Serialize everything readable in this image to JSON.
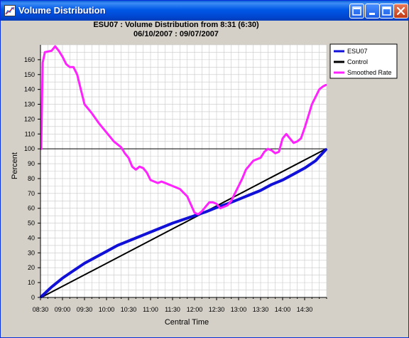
{
  "window": {
    "title": "Volume Distribution",
    "buttons": {
      "help": "?",
      "minimize": "minimize",
      "maximize": "maximize",
      "close": "close"
    }
  },
  "colors": {
    "esu07": "#1010d8",
    "control": "#000000",
    "smoothed": "#ff22ff",
    "grid": "#c8c8c8"
  },
  "chart_data": {
    "type": "line",
    "title": "ESU07 : Volume Distribution from 8:31 (6:30)",
    "subtitle": "06/10/2007 : 09/07/2007",
    "xlabel": "Central Time",
    "ylabel": "Percent",
    "ylim": [
      0,
      170
    ],
    "xlim": [
      "08:30",
      "15:00"
    ],
    "y_ticks": [
      0,
      10,
      20,
      30,
      40,
      50,
      60,
      70,
      80,
      90,
      100,
      110,
      120,
      130,
      140,
      150,
      160
    ],
    "x_ticks": [
      "08:30",
      "09:00",
      "09:30",
      "10:00",
      "10:30",
      "11:00",
      "11:30",
      "12:00",
      "12:30",
      "13:00",
      "13:30",
      "14:00",
      "14:30"
    ],
    "grid": true,
    "reference_line": 100,
    "legend_position": "right",
    "series": [
      {
        "name": "ESU07",
        "color": "#1010d8",
        "x": [
          "08:31",
          "08:45",
          "09:00",
          "09:15",
          "09:30",
          "09:45",
          "10:00",
          "10:15",
          "10:30",
          "10:45",
          "11:00",
          "11:15",
          "11:30",
          "11:45",
          "12:00",
          "12:15",
          "12:30",
          "12:45",
          "13:00",
          "13:15",
          "13:30",
          "13:45",
          "14:00",
          "14:15",
          "14:30",
          "14:45",
          "14:59"
        ],
        "y": [
          0.5,
          7,
          13,
          18,
          23,
          27,
          31,
          35,
          38,
          41,
          44,
          47,
          50,
          52.5,
          55,
          57.5,
          60.5,
          63,
          66,
          69,
          72,
          76,
          79,
          83,
          87,
          92,
          99.5
        ]
      },
      {
        "name": "Control",
        "color": "#000000",
        "x": [
          "08:31",
          "14:59"
        ],
        "y": [
          0,
          100
        ]
      },
      {
        "name": "Smoothed Rate",
        "color": "#ff22ff",
        "x": [
          "08:31",
          "08:33",
          "08:36",
          "08:45",
          "08:50",
          "08:55",
          "09:00",
          "09:05",
          "09:10",
          "09:15",
          "09:20",
          "09:25",
          "09:30",
          "09:40",
          "09:50",
          "10:00",
          "10:10",
          "10:20",
          "10:25",
          "10:30",
          "10:35",
          "10:40",
          "10:45",
          "10:50",
          "10:55",
          "11:00",
          "11:05",
          "11:10",
          "11:15",
          "11:20",
          "11:30",
          "11:40",
          "11:50",
          "12:00",
          "12:05",
          "12:10",
          "12:15",
          "12:20",
          "12:25",
          "12:30",
          "12:35",
          "12:40",
          "12:45",
          "12:50",
          "12:55",
          "13:00",
          "13:05",
          "13:10",
          "13:20",
          "13:30",
          "13:35",
          "13:40",
          "13:45",
          "13:50",
          "13:55",
          "14:00",
          "14:05",
          "14:10",
          "14:15",
          "14:20",
          "14:25",
          "14:30",
          "14:35",
          "14:40",
          "14:45",
          "14:50",
          "14:55",
          "14:59"
        ],
        "y": [
          100,
          158,
          165,
          166,
          169,
          166,
          162,
          157,
          155,
          155,
          150,
          140,
          130,
          124,
          117,
          111,
          105,
          101,
          97,
          94,
          88,
          86,
          88,
          87,
          84,
          79,
          78,
          77,
          78,
          77,
          75,
          73,
          68,
          57,
          56,
          58,
          61,
          64,
          64,
          63,
          60,
          61,
          62,
          65,
          70,
          75,
          80,
          86,
          92,
          94,
          98,
          100,
          99,
          97,
          98,
          107,
          110,
          107,
          104,
          105,
          107,
          114,
          122,
          130,
          135,
          140,
          142,
          143
        ]
      }
    ]
  }
}
